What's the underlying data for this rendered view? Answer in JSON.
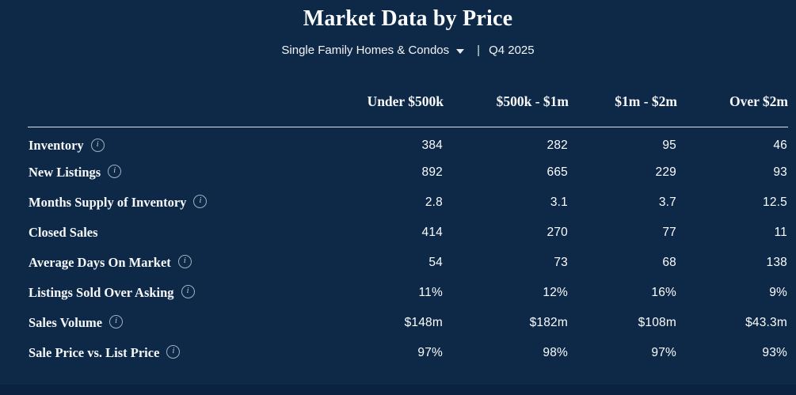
{
  "page": {
    "title": "Market Data by Price"
  },
  "filter": {
    "property_type": "Single Family Homes & Condos",
    "separator": "|",
    "period": "Q4 2025"
  },
  "icons": {
    "info": "i",
    "caret": "chevron-down"
  },
  "colors": {
    "background": "#0e2947",
    "text": "#f7f9fb",
    "rule": "#dde3e9",
    "icon_muted": "#9fb0c1",
    "bottom_strip": "#0b2240"
  },
  "table": {
    "columns": [
      "Under $500k",
      "$500k - $1m",
      "$1m - $2m",
      "Over $2m"
    ],
    "rows": [
      {
        "label": "Inventory",
        "info": true,
        "values": [
          "384",
          "282",
          "95",
          "46"
        ]
      },
      {
        "label": "New Listings",
        "info": true,
        "values": [
          "892",
          "665",
          "229",
          "93"
        ]
      },
      {
        "label": "Months Supply of Inventory",
        "info": true,
        "values": [
          "2.8",
          "3.1",
          "3.7",
          "12.5"
        ]
      },
      {
        "label": "Closed Sales",
        "info": false,
        "values": [
          "414",
          "270",
          "77",
          "11"
        ]
      },
      {
        "label": "Average Days On Market",
        "info": true,
        "values": [
          "54",
          "73",
          "68",
          "138"
        ]
      },
      {
        "label": "Listings Sold Over Asking",
        "info": true,
        "values": [
          "11%",
          "12%",
          "16%",
          "9%"
        ]
      },
      {
        "label": "Sales Volume",
        "info": true,
        "values": [
          "$148m",
          "$182m",
          "$108m",
          "$43.3m"
        ]
      },
      {
        "label": "Sale Price vs. List Price",
        "info": true,
        "values": [
          "97%",
          "98%",
          "97%",
          "93%"
        ]
      }
    ]
  }
}
